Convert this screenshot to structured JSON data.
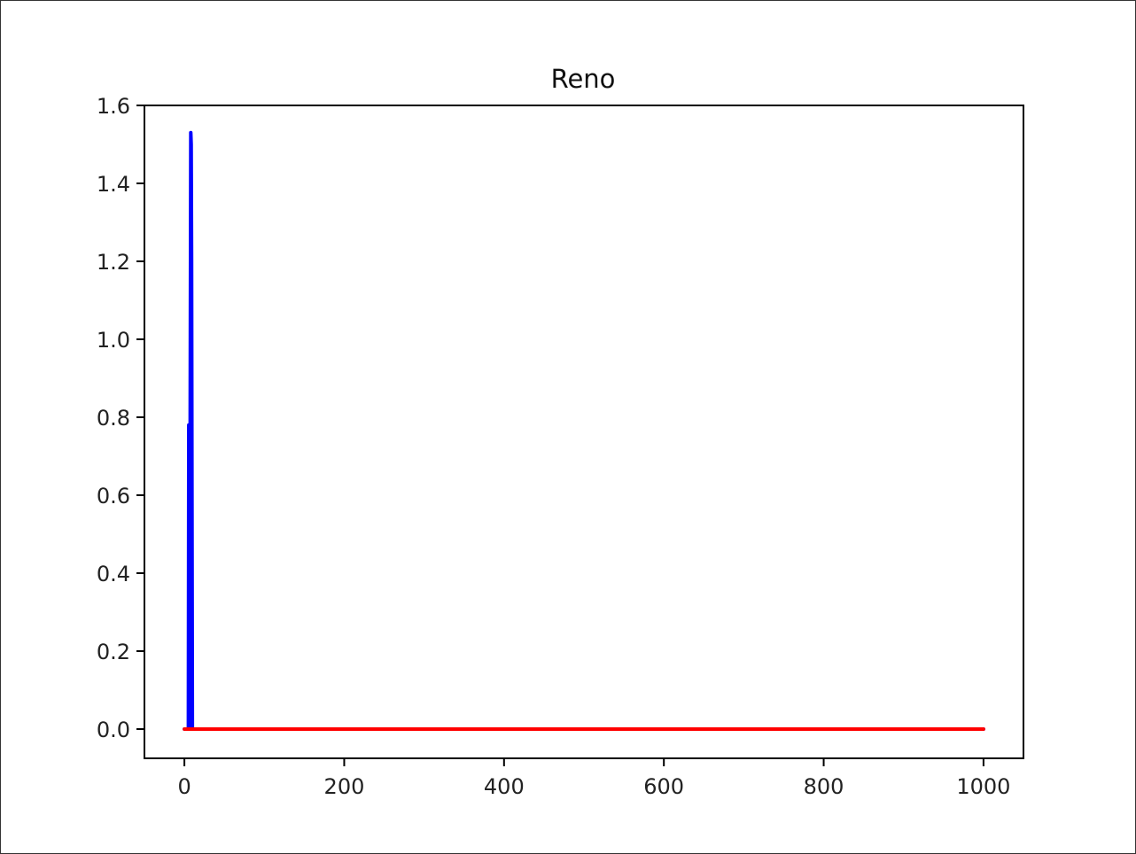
{
  "chart_data": {
    "type": "line",
    "title": "Reno",
    "xlabel": "",
    "ylabel": "",
    "xlim": [
      -50,
      1050
    ],
    "ylim": [
      -0.075,
      1.6
    ],
    "x_ticks": [
      0,
      200,
      400,
      600,
      800,
      1000
    ],
    "y_ticks": [
      0.0,
      0.2,
      0.4,
      0.6,
      0.8,
      1.0,
      1.2,
      1.4,
      1.6
    ],
    "x_tick_labels": [
      "0",
      "200",
      "400",
      "600",
      "800",
      "1000"
    ],
    "y_tick_labels": [
      "0.0",
      "0.2",
      "0.4",
      "0.6",
      "0.8",
      "1.0",
      "1.2",
      "1.4",
      "1.6"
    ],
    "grid": false,
    "legend": "none",
    "series": [
      {
        "color": "#0000ff",
        "x": [
          0,
          5,
          5.5,
          6,
          6.5,
          7,
          7.5,
          8,
          8.5,
          9,
          9.5,
          10,
          1000
        ],
        "y": [
          0,
          0,
          0.78,
          0.7,
          0,
          0.5,
          1.05,
          1.53,
          1.5,
          1.2,
          0.6,
          0,
          0
        ]
      },
      {
        "color": "#ff0000",
        "x": [
          0,
          1000
        ],
        "y": [
          0,
          0
        ]
      }
    ]
  }
}
